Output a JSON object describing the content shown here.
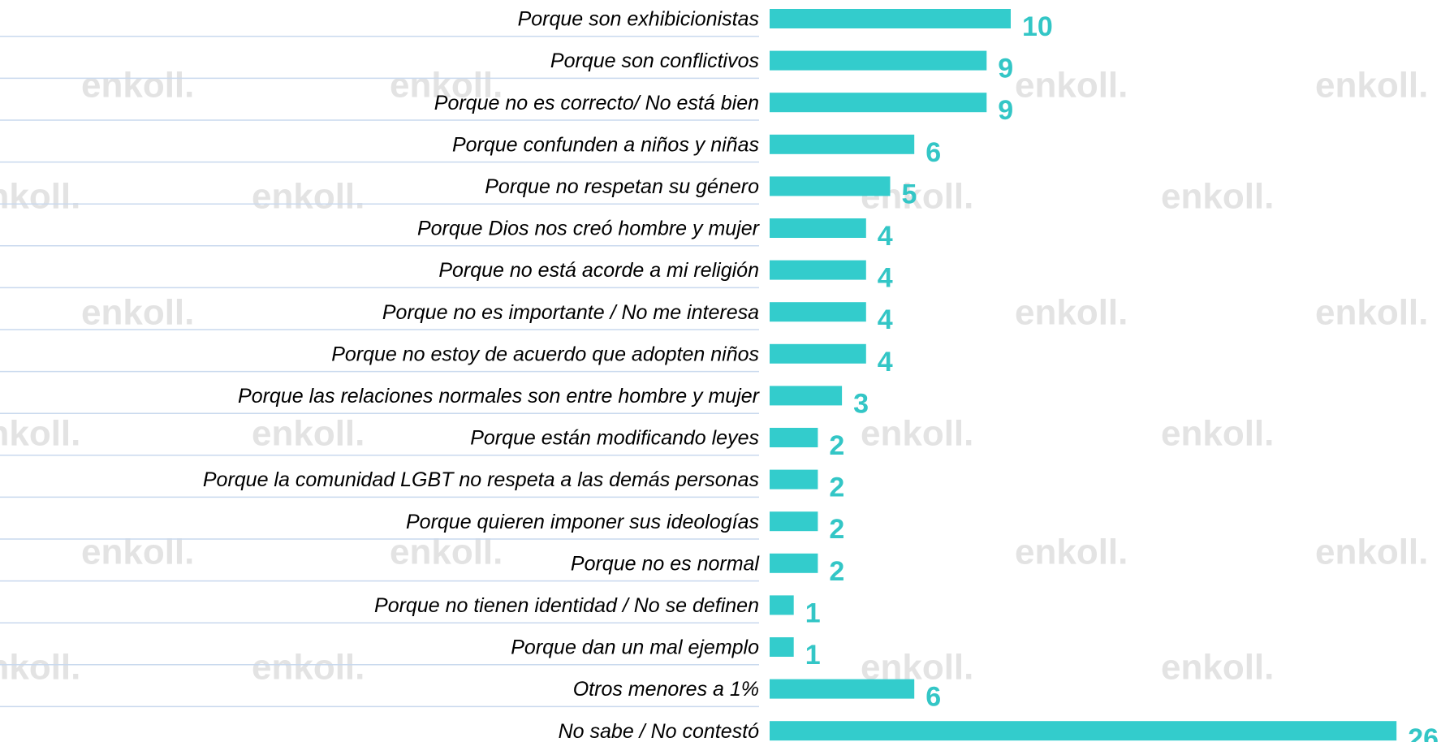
{
  "chart_data": {
    "type": "bar",
    "orientation": "horizontal",
    "color": "#33cccc",
    "watermark": "enkoll.",
    "categories": [
      "Porque son exhibicionistas",
      "Porque son conflictivos",
      "Porque no es correcto/ No está bien",
      "Porque confunden a niños y niñas",
      "Porque no respetan su género",
      "Porque Dios nos creó hombre y mujer",
      "Porque no está acorde a mi religión",
      "Porque no es importante / No me interesa",
      "Porque no estoy de acuerdo que adopten niños",
      "Porque las relaciones normales son entre hombre y mujer",
      "Porque están modificando leyes",
      "Porque la comunidad LGBT no respeta a las demás personas",
      "Porque quieren imponer sus ideologías",
      "Porque no es normal",
      "Porque no tienen identidad / No se definen",
      "Porque dan un mal ejemplo",
      "Otros menores a  1%",
      "No sabe / No contestó"
    ],
    "values": [
      10,
      9,
      9,
      6,
      5,
      4,
      4,
      4,
      4,
      3,
      2,
      2,
      2,
      2,
      1,
      1,
      6,
      26
    ]
  }
}
